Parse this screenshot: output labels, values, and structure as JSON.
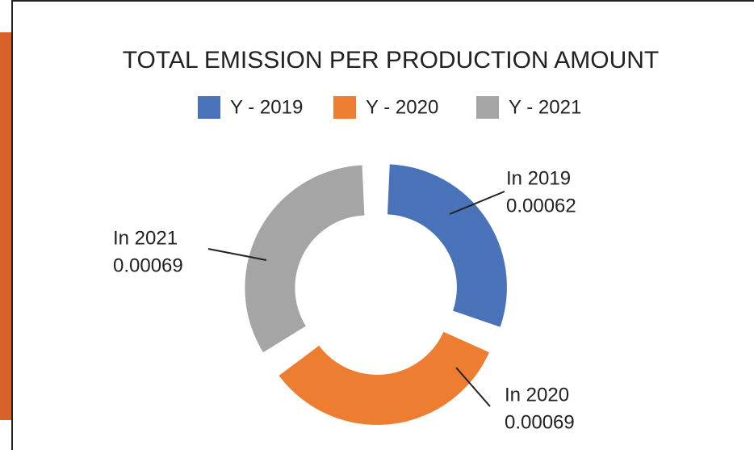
{
  "chart_data": {
    "type": "donut",
    "title": "TOTAL EMISSION PER PRODUCTION AMOUNT",
    "categories": [
      "Y - 2019",
      "Y - 2020",
      "Y - 2021"
    ],
    "values": [
      0.00062,
      0.00069,
      0.00069
    ],
    "data_labels": [
      "In 2019",
      "In 2020",
      "In 2021"
    ],
    "colors": [
      "#4a72b8",
      "#ed7d31",
      "#a5a5a5"
    ],
    "legend": "top"
  }
}
